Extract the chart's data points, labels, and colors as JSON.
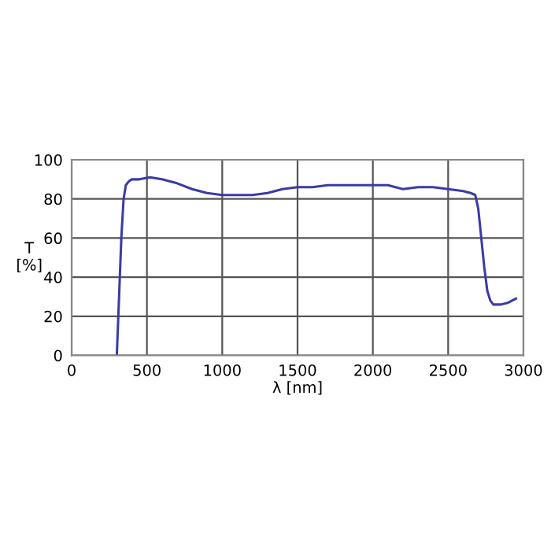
{
  "chart_data": {
    "type": "line",
    "xlabel": "λ [nm]",
    "ylabel": "T\n[%]",
    "series": [
      {
        "color": "#3b3ba8",
        "x": [
          300,
          315,
          330,
          345,
          360,
          380,
          400,
          450,
          520,
          600,
          700,
          800,
          900,
          1000,
          1100,
          1200,
          1300,
          1400,
          1500,
          1600,
          1700,
          1800,
          1900,
          2000,
          2100,
          2150,
          2200,
          2300,
          2400,
          2500,
          2600,
          2650,
          2680,
          2700,
          2720,
          2740,
          2760,
          2780,
          2800,
          2850,
          2900,
          2950
        ],
        "values": [
          0,
          30,
          60,
          80,
          87,
          89,
          90,
          90,
          91,
          90,
          88,
          85,
          83,
          82,
          82,
          82,
          83,
          85,
          86,
          86,
          87,
          87,
          87,
          87,
          87,
          86,
          85,
          86,
          86,
          85,
          84,
          83,
          82,
          75,
          60,
          45,
          33,
          28,
          26,
          26,
          27,
          29
        ]
      }
    ],
    "xlim": [
      0,
      3000
    ],
    "xticks": [
      0,
      500,
      1000,
      1500,
      2000,
      2500,
      3000
    ],
    "ylim": [
      0,
      100
    ],
    "yticks": [
      0,
      20,
      40,
      60,
      80,
      100
    ],
    "grid": true,
    "line_style": "solid"
  }
}
